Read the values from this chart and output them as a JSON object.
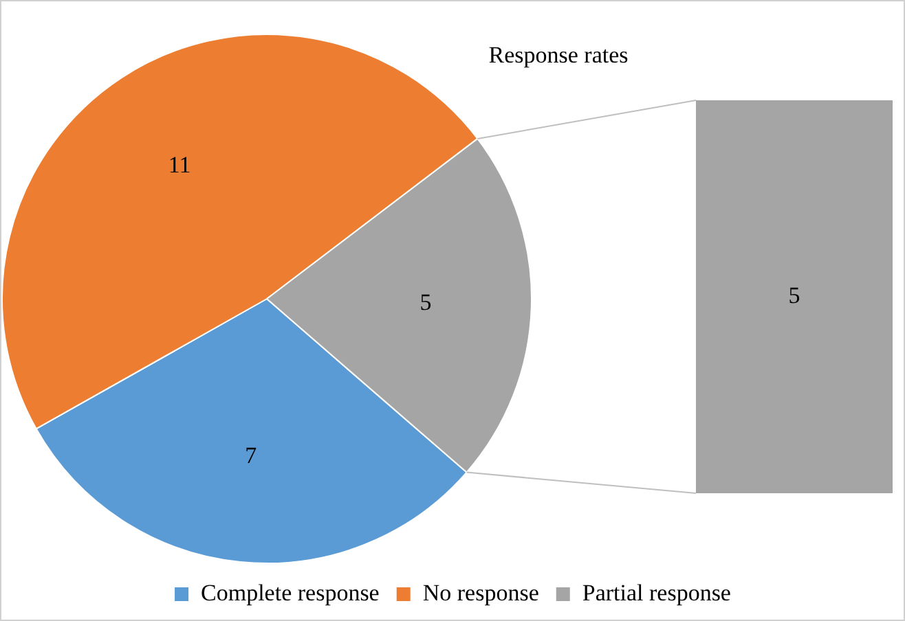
{
  "chart_data": {
    "type": "pie",
    "title": "Response rates",
    "categories": [
      "Complete response",
      "No response",
      "Partial response"
    ],
    "values": [
      7,
      11,
      5
    ],
    "colors": [
      "#5b9bd5",
      "#ed7d31",
      "#a5a5a5"
    ],
    "data_labels": true,
    "legend": "bottom",
    "annotations": [
      "5"
    ]
  }
}
